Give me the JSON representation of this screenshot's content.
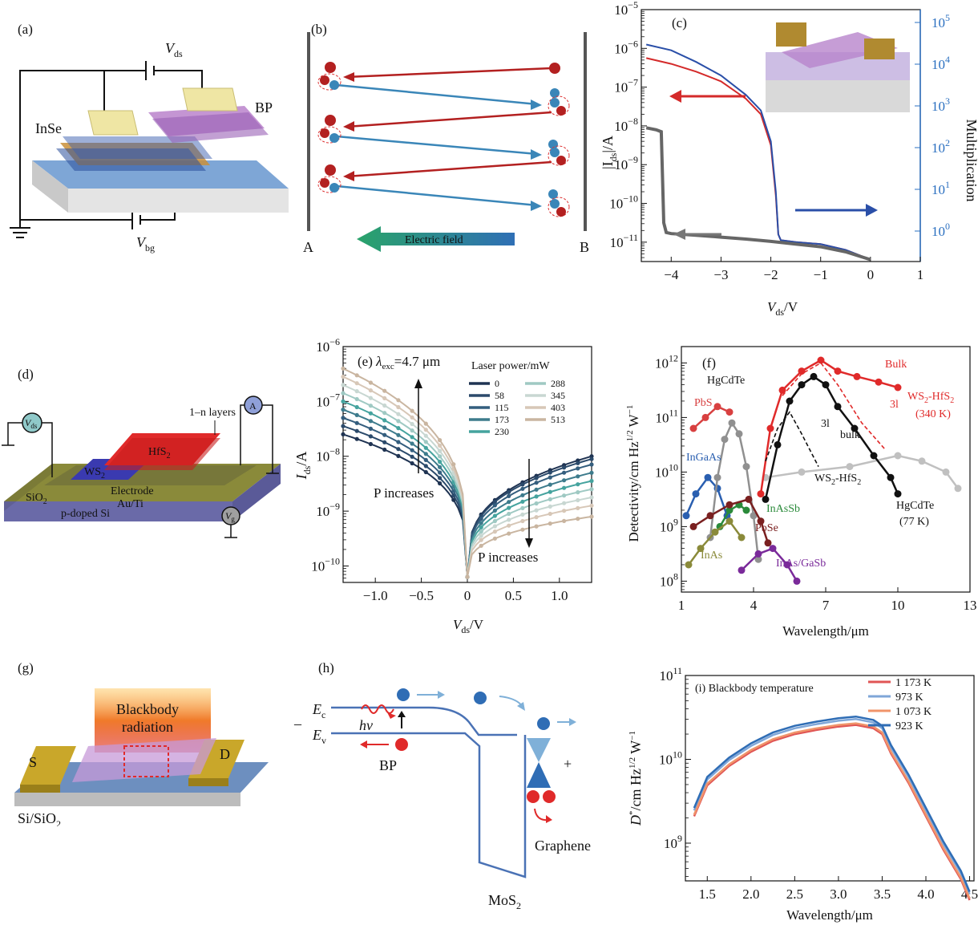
{
  "panels": {
    "a": {
      "label": "(a)",
      "vds": "V",
      "vds_sub": "ds",
      "vbg": "V",
      "vbg_sub": "bg",
      "inse": "InSe",
      "bp": "BP"
    },
    "b": {
      "label": "(b)",
      "left": "A",
      "right": "B",
      "field": "Electric field"
    },
    "c": {
      "label": "(c)"
    },
    "d": {
      "label": "(d)",
      "hfs2": "HfS",
      "hfs2_sub": "2",
      "ws2": "WS",
      "ws2_sub": "2",
      "layers": "1–n layers",
      "electrode": "Electrode",
      "electrode2": "Au/Ti",
      "sio2": "SiO",
      "sio2_sub": "2",
      "psi": "p-doped Si",
      "vds": "V",
      "vds_sub": "ds",
      "amp": "A",
      "vg": "V",
      "vg_sub": "g"
    },
    "e": {
      "label": "(e)"
    },
    "f": {
      "label": "(f)"
    },
    "g": {
      "label": "(g)",
      "bb1": "Blackbody",
      "bb2": "radiation",
      "s": "S",
      "d": "D",
      "sub": "Si/SiO",
      "sub_sub": "2"
    },
    "h": {
      "label": "(h)",
      "ec": "E",
      "ec_sub": "c",
      "ev": "E",
      "ev_sub": "v",
      "hv": "hv",
      "bp": "BP",
      "mos2": "MoS",
      "mos2_sub": "2",
      "graphene": "Graphene",
      "minus": "–",
      "plus": "+"
    },
    "i": {
      "label": "(i)"
    }
  },
  "colors": {
    "red": "#d42a2a",
    "blue": "#2a4fa8",
    "gray": "#666666",
    "green": "#2a8a3a",
    "teal": "#3a8fb8",
    "purple": "#7a2a9a",
    "brown": "#8a2a2a"
  },
  "chart_data": [
    {
      "id": "c",
      "type": "line",
      "xlabel": "V",
      "xlabel_sub": "ds",
      "xlabel_unit": "/V",
      "ylabel": "|I",
      "ylabel_sub": "ds",
      "ylabel_unit": "|/A",
      "y2label": "Multiplication",
      "xlim": [
        -4.6,
        1.0
      ],
      "log_y": true,
      "ylim_exp": [
        -11.5,
        -5
      ],
      "x_ticks": [
        -4,
        -3,
        -2,
        -1,
        0,
        1
      ],
      "y_ticks": [
        "10^-11",
        "10^-10",
        "10^-9",
        "10^-8",
        "10^-7",
        "10^-6",
        "10^-5"
      ],
      "y2_ticks": [
        "10^0",
        "10^1",
        "10^2",
        "10^3",
        "10^4",
        "10^5"
      ],
      "series": [
        {
          "color": "red",
          "x": [
            -4.5,
            -4,
            -3.5,
            -3,
            -2.5,
            -2.2,
            -2.0,
            -1.9,
            -1.85,
            -1.8,
            -1.5,
            -1,
            -0.5,
            0
          ],
          "log_y": [
            -6.25,
            -6.4,
            -6.6,
            -6.85,
            -7.3,
            -7.7,
            -8.5,
            -9.8,
            -10.8,
            -10.95,
            -11.0,
            -11.05,
            -11.2,
            -11.45
          ]
        },
        {
          "color": "blue",
          "x": [
            -4.5,
            -4,
            -3.5,
            -3,
            -2.5,
            -2.2,
            -2.0,
            -1.9,
            -1.85,
            -1.8,
            -1.5,
            -1,
            -0.5,
            0
          ],
          "log_y": [
            -5.9,
            -6.05,
            -6.35,
            -6.7,
            -7.2,
            -7.6,
            -8.4,
            -9.7,
            -10.8,
            -10.95,
            -11.0,
            -11.05,
            -11.2,
            -11.45
          ]
        },
        {
          "color": "gray",
          "x": [
            -4.5,
            -4.3,
            -4.2,
            -4.15,
            -4.1,
            -4.0,
            -3.5,
            -3,
            -2.5,
            -2,
            -1.5,
            -1,
            -0.5,
            0
          ],
          "log_y": [
            -8.05,
            -8.1,
            -8.15,
            -10.5,
            -10.75,
            -10.78,
            -10.82,
            -10.87,
            -10.92,
            -10.98,
            -11.05,
            -11.12,
            -11.25,
            -11.45
          ]
        }
      ]
    },
    {
      "id": "e",
      "type": "line",
      "xlabel": "V",
      "xlabel_sub": "ds",
      "xlabel_unit": "/V",
      "ylabel": "I",
      "ylabel_sub": "ds",
      "ylabel_unit": "/A",
      "xlim": [
        -1.35,
        1.35
      ],
      "log_y": true,
      "ylim_exp": [
        -10.3,
        -6
      ],
      "x_ticks": [
        -1.0,
        -0.5,
        0,
        0.5,
        1.0
      ],
      "y_ticks": [
        "10^-10",
        "10^-9",
        "10^-8",
        "10^-7",
        "10^-6"
      ],
      "annotation": "λ",
      "annotation_sub": "exc",
      "annotation_rest": "=4.7 μm",
      "legend_title": "Laser power/mW",
      "legend_values": [
        "0",
        "58",
        "115",
        "173",
        "230",
        "288",
        "345",
        "403",
        "513"
      ],
      "p_inc_left": "P increases",
      "p_inc_right": "P increases",
      "series_left_endpoint_log": [
        -7.6,
        -7.45,
        -7.3,
        -7.15,
        -7.0,
        -6.85,
        -6.7,
        -6.55,
        -6.4
      ],
      "series_right_endpoint_log": [
        -8.0,
        -8.05,
        -8.15,
        -8.3,
        -8.45,
        -8.6,
        -8.75,
        -8.9,
        -9.1
      ],
      "colors": [
        "#1f3352",
        "#2b4a6b",
        "#345e7e",
        "#3d7b8c",
        "#45a39e",
        "#9fc9c3",
        "#c8d7d2",
        "#d7c7b7",
        "#c9b5a0"
      ]
    },
    {
      "id": "f",
      "type": "scatter",
      "xlabel": "Wavelength/μm",
      "ylabel": "Detectivity/cm Hz",
      "ylabel_sup": "1/2",
      "ylabel_rest": " W",
      "ylabel_sup2": "−1",
      "xlim": [
        1,
        13
      ],
      "log_y": true,
      "ylim_exp": [
        7.8,
        12.3
      ],
      "x_ticks": [
        1,
        4,
        7,
        10,
        13
      ],
      "y_ticks": [
        "10^8",
        "10^9",
        "10^10",
        "10^11",
        "10^12"
      ],
      "labels": {
        "hgcdte_top": "HgCdTe",
        "pbs": "PbS",
        "ingaas": "InGaAs",
        "inassb": "InAsSb",
        "pbse": "PbSe",
        "inas": "InAs",
        "inasgasb": "InAs/GaSb",
        "bulk_red": "Bulk",
        "l3_red": "3l",
        "ws2hfs2_red": "WS",
        "ws2hfs2_red_sub": "2",
        "ws2hfs2_red_rest": "-HfS",
        "ws2hfs2_red_sub2": "2",
        "temp_340": "(340 K)",
        "l3_black": "3l",
        "bulk_black": "bulk",
        "ws2hfs2_black": "WS",
        "ws2hfs2_black_sub": "2",
        "ws2hfs2_black_rest": "-HfS",
        "ws2hfs2_black_sub2": "2",
        "hgcdte_bottom": "HgCdTe",
        "temp_77": "(77 K)"
      }
    },
    {
      "id": "i",
      "type": "line",
      "xlabel": "Wavelength/μm",
      "ylabel": "D",
      "ylabel_sup": "*",
      "ylabel_rest": "/cm Hz",
      "ylabel_sup2": "1/2",
      "ylabel_rest2": " W",
      "ylabel_sup3": "−1",
      "xlim": [
        1.25,
        4.55
      ],
      "log_y": true,
      "ylim_exp": [
        8.55,
        11
      ],
      "x_ticks": [
        1.5,
        2.0,
        2.5,
        3.0,
        3.5,
        4.0,
        4.5
      ],
      "y_ticks": [
        "10^9",
        "10^10",
        "10^11"
      ],
      "annotation": "(i) Blackbody temperature",
      "series": [
        {
          "name": "1 173 K",
          "color": "#e05555"
        },
        {
          "name": "973 K",
          "color": "#7fa6d8"
        },
        {
          "name": "1 073 K",
          "color": "#f0946a"
        },
        {
          "name": "923 K",
          "color": "#2f6db5"
        }
      ],
      "x": [
        1.35,
        1.5,
        1.75,
        2.0,
        2.25,
        2.5,
        2.75,
        3.0,
        3.2,
        3.4,
        3.5,
        3.6,
        3.8,
        4.0,
        4.2,
        4.4,
        4.5
      ],
      "base_log": [
        9.35,
        9.72,
        9.95,
        10.12,
        10.25,
        10.33,
        10.38,
        10.42,
        10.44,
        10.4,
        10.33,
        10.1,
        9.75,
        9.35,
        8.95,
        8.6,
        8.35
      ],
      "offsets": [
        -0.03,
        0.04,
        -0.01,
        0.07
      ]
    }
  ]
}
